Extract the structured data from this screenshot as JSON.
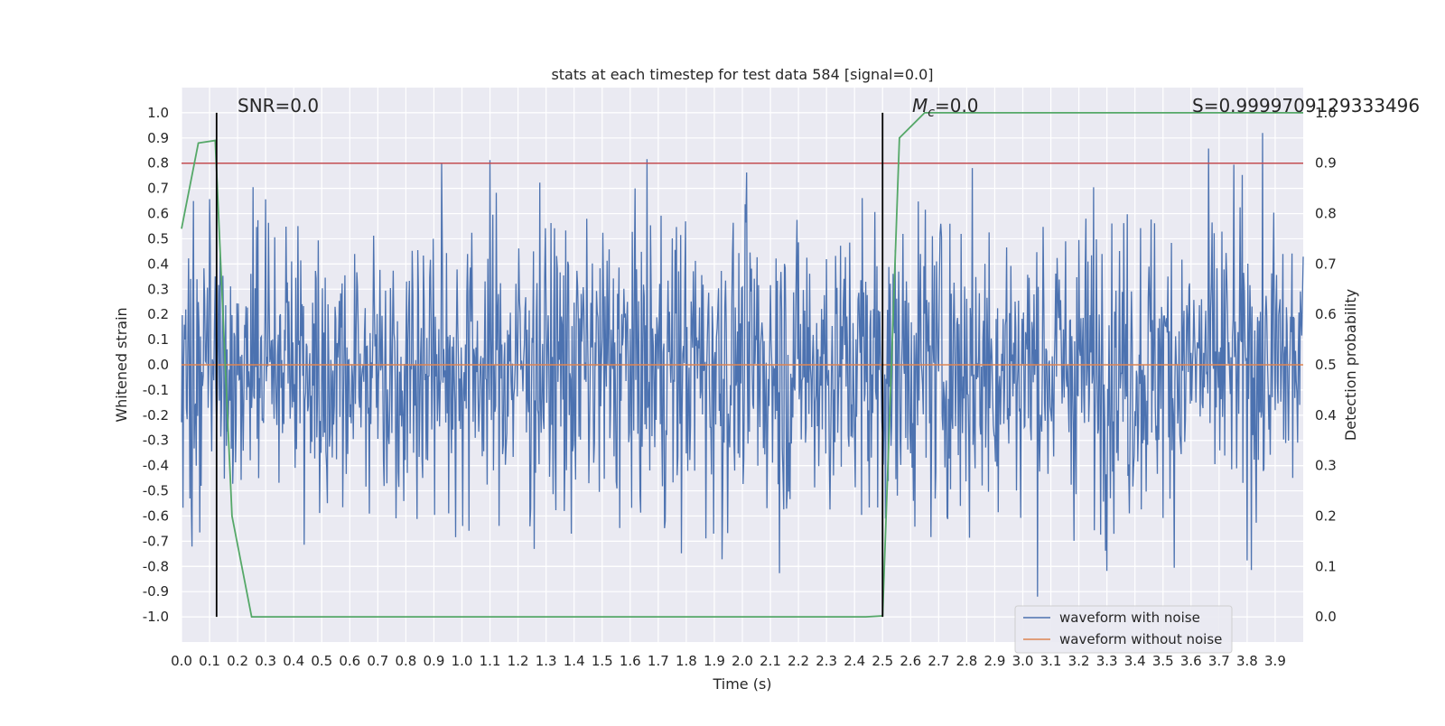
{
  "chart_data": {
    "type": "line",
    "title": "stats at each timestep for test data 584 [signal=0.0]",
    "xlabel": "Time (s)",
    "ylabel": "Whitened strain",
    "y2label": "Detection probability",
    "xlim": [
      0.0,
      4.0
    ],
    "ylim": [
      -1.1,
      1.1
    ],
    "y2lim": [
      -0.05,
      1.05
    ],
    "x_ticks": [
      "0.0",
      "0.1",
      "0.2",
      "0.3",
      "0.4",
      "0.5",
      "0.6",
      "0.7",
      "0.8",
      "0.9",
      "1.0",
      "1.1",
      "1.2",
      "1.3",
      "1.4",
      "1.5",
      "1.6",
      "1.7",
      "1.8",
      "1.9",
      "2.0",
      "2.1",
      "2.2",
      "2.3",
      "2.4",
      "2.5",
      "2.6",
      "2.7",
      "2.8",
      "2.9",
      "3.0",
      "3.1",
      "3.2",
      "3.3",
      "3.4",
      "3.5",
      "3.6",
      "3.7",
      "3.8",
      "3.9"
    ],
    "y_ticks": [
      "1.0",
      "0.9",
      "0.8",
      "0.7",
      "0.6",
      "0.5",
      "0.4",
      "0.3",
      "0.2",
      "0.1",
      "0.0",
      "-0.1",
      "-0.2",
      "-0.3",
      "-0.4",
      "-0.5",
      "-0.6",
      "-0.7",
      "-0.8",
      "-0.9",
      "-1.0"
    ],
    "y2_ticks": [
      "1.0",
      "0.9",
      "0.8",
      "0.7",
      "0.6",
      "0.5",
      "0.4",
      "0.3",
      "0.2",
      "0.1",
      "0.0"
    ],
    "grid": true,
    "legend_position": "bottom-right",
    "series": [
      {
        "name": "waveform with noise",
        "color": "#4c72b0",
        "kind": "noise",
        "approx_amplitude": 0.3,
        "approx_peak": 0.92
      },
      {
        "name": "waveform without noise",
        "color": "#dd8452",
        "values_y": 0.0
      },
      {
        "name": "",
        "color": "#55a868",
        "axis": "secondary",
        "x": [
          0.0,
          0.06,
          0.12,
          0.18,
          0.25,
          2.35,
          2.44,
          2.5,
          2.56,
          2.65,
          2.7,
          3.9,
          4.0
        ],
        "y": [
          0.77,
          0.94,
          0.945,
          0.2,
          0.0,
          0.0,
          0.0,
          0.002,
          0.95,
          1.0,
          1.0,
          1.0,
          1.0
        ]
      }
    ],
    "threshold_line": {
      "y2": 0.9,
      "color": "#c44e52"
    },
    "vertical_lines_x": [
      0.125,
      2.5
    ],
    "annotations": {
      "snr": "SNR=0.0",
      "mc_symbol": "M",
      "mc_sub": "c",
      "mc_value": "=0.0",
      "s_value": "S=0.9999709129333496"
    }
  }
}
